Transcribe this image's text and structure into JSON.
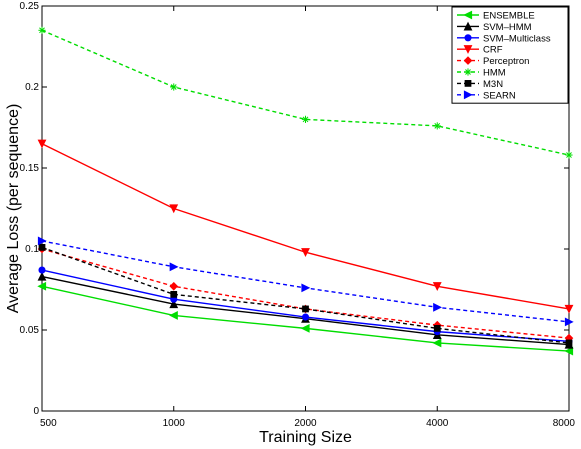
{
  "chart_data": {
    "type": "line",
    "title": "",
    "xlabel": "Training Size",
    "ylabel": "Average Loss (per sequence)",
    "x": [
      500,
      1000,
      2000,
      4000,
      8000
    ],
    "x_tick_labels": [
      "500",
      "1000",
      "2000",
      "4000",
      "8000"
    ],
    "y_ticks": [
      0,
      0.05,
      0.1,
      0.15,
      0.2,
      0.25
    ],
    "y_tick_labels": [
      "0",
      "0.05",
      "0.1",
      "0.15",
      "0.2",
      "0.25"
    ],
    "ylim": [
      0,
      0.25
    ],
    "x_scale": "log2",
    "grid": false,
    "legend_position": "top-right",
    "series": [
      {
        "name": "ENSEMBLE",
        "color": "#00dd00",
        "dash": "solid",
        "marker": "triangle-left",
        "values": [
          0.077,
          0.059,
          0.051,
          0.042,
          0.037
        ]
      },
      {
        "name": "SVM–HMM",
        "color": "#000000",
        "dash": "solid",
        "marker": "triangle-up",
        "values": [
          0.083,
          0.066,
          0.057,
          0.047,
          0.041
        ]
      },
      {
        "name": "SVM–Multiclass",
        "color": "#0000ff",
        "dash": "solid",
        "marker": "circle",
        "values": [
          0.087,
          0.069,
          0.058,
          0.049,
          0.043
        ]
      },
      {
        "name": "CRF",
        "color": "#ff0000",
        "dash": "solid",
        "marker": "triangle-down",
        "values": [
          0.165,
          0.125,
          0.098,
          0.077,
          0.063
        ]
      },
      {
        "name": "Perceptron",
        "color": "#ff0000",
        "dash": "dashed",
        "marker": "diamond",
        "values": [
          0.1,
          0.077,
          0.063,
          0.053,
          0.045
        ]
      },
      {
        "name": "HMM",
        "color": "#00dd00",
        "dash": "dashed",
        "marker": "star",
        "values": [
          0.235,
          0.2,
          0.18,
          0.176,
          0.158
        ]
      },
      {
        "name": "M3N",
        "color": "#000000",
        "dash": "dashed",
        "marker": "square",
        "values": [
          0.101,
          0.072,
          0.063,
          0.051,
          0.042
        ]
      },
      {
        "name": "SEARN",
        "color": "#0000ff",
        "dash": "dashed",
        "marker": "triangle-right",
        "values": [
          0.105,
          0.089,
          0.076,
          0.064,
          0.055
        ]
      }
    ]
  }
}
